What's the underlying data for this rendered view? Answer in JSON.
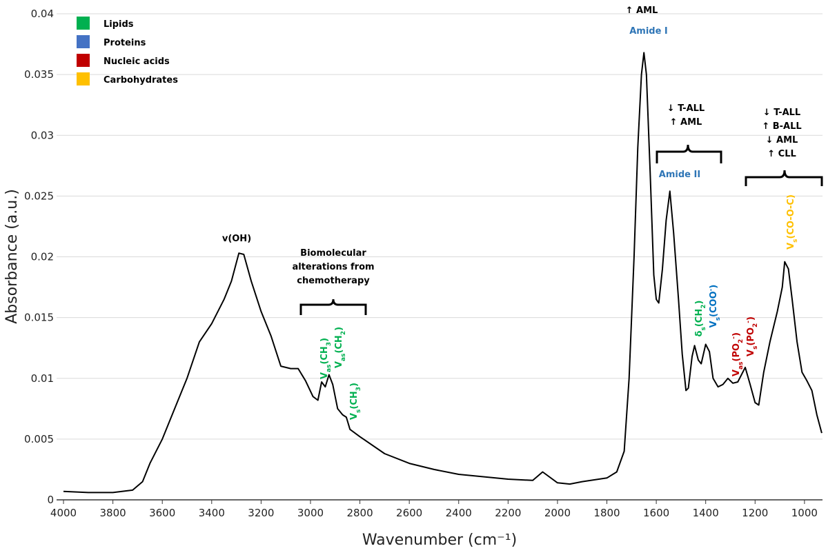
{
  "chart_data": {
    "type": "line",
    "x_label": "Wavenumber (cm⁻¹)",
    "y_label": "Absorbance (a.u.)",
    "color": "#000000",
    "x": [
      4000,
      3900,
      3800,
      3720,
      3680,
      3650,
      3600,
      3550,
      3500,
      3450,
      3400,
      3350,
      3320,
      3290,
      3270,
      3240,
      3200,
      3160,
      3120,
      3080,
      3050,
      3020,
      2990,
      2970,
      2955,
      2940,
      2925,
      2910,
      2890,
      2870,
      2855,
      2840,
      2800,
      2700,
      2600,
      2500,
      2400,
      2300,
      2200,
      2100,
      2060,
      2000,
      1950,
      1900,
      1800,
      1760,
      1730,
      1710,
      1690,
      1675,
      1660,
      1650,
      1640,
      1625,
      1610,
      1600,
      1590,
      1575,
      1560,
      1545,
      1530,
      1510,
      1495,
      1480,
      1470,
      1455,
      1445,
      1430,
      1418,
      1400,
      1385,
      1370,
      1350,
      1330,
      1310,
      1290,
      1270,
      1240,
      1220,
      1200,
      1185,
      1165,
      1140,
      1110,
      1090,
      1080,
      1065,
      1050,
      1030,
      1010,
      990,
      970,
      950,
      930
    ],
    "values": [
      0.0007,
      0.0006,
      0.0006,
      0.0008,
      0.0015,
      0.003,
      0.005,
      0.0075,
      0.01,
      0.013,
      0.0145,
      0.0165,
      0.018,
      0.0203,
      0.0202,
      0.018,
      0.0155,
      0.0135,
      0.011,
      0.0108,
      0.0108,
      0.0098,
      0.0085,
      0.0082,
      0.0097,
      0.0093,
      0.0103,
      0.0095,
      0.0075,
      0.007,
      0.0068,
      0.0058,
      0.0052,
      0.0038,
      0.003,
      0.0025,
      0.0021,
      0.0019,
      0.0017,
      0.0016,
      0.0023,
      0.0014,
      0.0013,
      0.0015,
      0.0018,
      0.0023,
      0.004,
      0.01,
      0.02,
      0.029,
      0.035,
      0.0368,
      0.035,
      0.027,
      0.0185,
      0.0165,
      0.0162,
      0.019,
      0.023,
      0.0254,
      0.022,
      0.0165,
      0.012,
      0.009,
      0.0092,
      0.0118,
      0.0127,
      0.0115,
      0.0112,
      0.0128,
      0.0122,
      0.01,
      0.0093,
      0.0095,
      0.01,
      0.0096,
      0.0097,
      0.0109,
      0.0095,
      0.008,
      0.0078,
      0.0105,
      0.013,
      0.0155,
      0.0175,
      0.0196,
      0.019,
      0.0165,
      0.013,
      0.0105,
      0.0098,
      0.009,
      0.007,
      0.0055
    ],
    "xlim": [
      4028,
      927
    ],
    "xticks": [
      4000,
      3800,
      3600,
      3400,
      3200,
      3000,
      2800,
      2600,
      2400,
      2200,
      2000,
      1800,
      1600,
      1400,
      1200,
      1000
    ],
    "ylim": [
      0,
      0.04
    ],
    "yticks": [
      0,
      0.005,
      0.01,
      0.015,
      0.02,
      0.025,
      0.03,
      0.035,
      0.04
    ],
    "grid": true,
    "legend_position": "upper left",
    "legend": [
      {
        "name": "Lipids",
        "color": "#00b050"
      },
      {
        "name": "Proteins",
        "color": "#4472c4"
      },
      {
        "name": "Nucleic acids",
        "color": "#c00000"
      },
      {
        "name": "Carbohydrates",
        "color": "#ffc000"
      }
    ],
    "annotations": [
      {
        "lines": [
          [
            "↑ AML"
          ]
        ],
        "color": "#000000"
      },
      {
        "lines": [
          [
            "Amide I"
          ]
        ],
        "color": "#2e75b6"
      },
      {
        "lines": [
          [
            "↓ T-ALL"
          ],
          [
            "↑ AML"
          ]
        ],
        "color": "#000000"
      },
      {
        "lines": [
          [
            "Amide II"
          ]
        ],
        "color": "#2e75b6"
      },
      {
        "lines": [
          [
            "↓ T-ALL"
          ],
          [
            "↑ B-ALL"
          ],
          [
            "↓ AML"
          ],
          [
            "↑ CLL"
          ]
        ],
        "color": "#000000"
      },
      {
        "lines": [
          [
            "v(OH)"
          ]
        ],
        "color": "#000000"
      },
      {
        "lines": [
          [
            "Biomolecular"
          ],
          [
            "alterations from"
          ],
          [
            "chemotherapy"
          ]
        ],
        "color": "#000000"
      },
      {
        "lines": [
          [
            "V",
            {
              "sub": "as"
            },
            "(CH",
            {
              "sub": "3"
            },
            ")"
          ]
        ],
        "color": "#00b050",
        "rotated": true
      },
      {
        "lines": [
          [
            "V",
            {
              "sub": "as"
            },
            "(CH",
            {
              "sub": "2"
            },
            ")"
          ]
        ],
        "color": "#00b050",
        "rotated": true
      },
      {
        "lines": [
          [
            "V",
            {
              "sub": "s"
            },
            "(CH",
            {
              "sub": "3"
            },
            ")"
          ]
        ],
        "color": "#00b050",
        "rotated": true
      },
      {
        "lines": [
          [
            "δ",
            {
              "sub": "s"
            },
            "(CH",
            {
              "sub": "2"
            },
            ")"
          ]
        ],
        "color": "#00b050",
        "rotated": true
      },
      {
        "lines": [
          [
            "V",
            {
              "sub": "s"
            },
            "(COO",
            {
              "sup": "-"
            },
            ")"
          ]
        ],
        "color": "#0070c0",
        "rotated": true
      },
      {
        "lines": [
          [
            "V",
            {
              "sub": "as"
            },
            "(PO",
            {
              "sub": "2"
            },
            {
              "sup": "-"
            },
            ")"
          ]
        ],
        "color": "#c00000",
        "rotated": true
      },
      {
        "lines": [
          [
            "V",
            {
              "sub": "s"
            },
            "(PO",
            {
              "sub": "2"
            },
            {
              "sup": "-"
            },
            ")"
          ]
        ],
        "color": "#c00000",
        "rotated": true
      },
      {
        "lines": [
          [
            "V",
            {
              "sub": "s"
            },
            "(CO-O-C)"
          ]
        ],
        "color": "#ffc000",
        "rotated": true
      }
    ]
  }
}
